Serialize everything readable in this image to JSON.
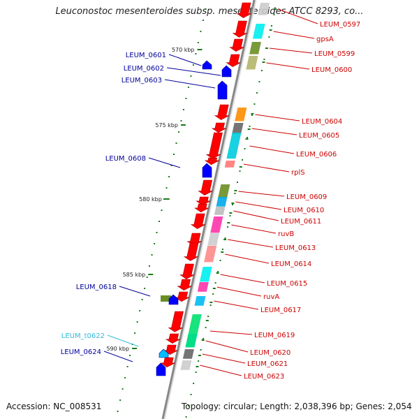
{
  "header": {
    "title": "Leuconostoc mesenteroides subsp. mesenteroides ATCC 8293, co..."
  },
  "footer": {
    "accession": "Accession: NC_008531",
    "topology": "Topology: circular; Length: 2,038,396 bp; Genes: 2,054"
  },
  "colors": {
    "forward_gene": "#ff0000",
    "reverse_gene": "#0000ff",
    "trna_gene": "#00bfff",
    "forward_label": "#cc0000",
    "reverse_label": "#000099",
    "trna_label": "#33bbdd",
    "backbone": "#888888",
    "tick": "#1a7a1a"
  },
  "scale_marks": [
    {
      "label": "570 kbp"
    },
    {
      "label": "575 kbp"
    },
    {
      "label": "580 kbp"
    },
    {
      "label": "585 kbp"
    },
    {
      "label": "590 kbp"
    }
  ],
  "forward_genes": [
    {
      "name": "LEUM_0597",
      "cog_color": "#cccccc"
    },
    {
      "name": "gpsA",
      "cog_color": "#00eeee"
    },
    {
      "name": "LEUM_0599",
      "cog_color": "#6b8e23"
    },
    {
      "name": "LEUM_0600",
      "cog_color": "#b5b56a"
    },
    {
      "name": "LEUM_0604",
      "cog_color": "#ff8c00"
    },
    {
      "name": "LEUM_0605",
      "cog_color": "#666666"
    },
    {
      "name": "LEUM_0606",
      "cog_color": "#00ccdd"
    },
    {
      "name": "rplS",
      "cog_color": "#ff7777"
    },
    {
      "name": "LEUM_0609",
      "cog_color": "#6b8e23"
    },
    {
      "name": "LEUM_0610",
      "cog_color": "#00a8e8"
    },
    {
      "name": "LEUM_0611",
      "cog_color": "#bbbbbb"
    },
    {
      "name": "ruvB",
      "cog_color": "#ff33aa"
    },
    {
      "name": "LEUM_0613",
      "cog_color": "#cccccc"
    },
    {
      "name": "LEUM_0614",
      "cog_color": "#ff8888"
    },
    {
      "name": "LEUM_0615",
      "cog_color": "#00eeee"
    },
    {
      "name": "ruvA",
      "cog_color": "#ff33aa"
    },
    {
      "name": "LEUM_0617",
      "cog_color": "#00bbee"
    },
    {
      "name": "LEUM_0619",
      "cog_color": "#00e070"
    },
    {
      "name": "LEUM_0620",
      "cog_color": "#00dd88"
    },
    {
      "name": "LEUM_0621",
      "cog_color": "#666666"
    },
    {
      "name": "LEUM_0623",
      "cog_color": "#cccccc"
    }
  ],
  "reverse_genes": [
    {
      "name": "LEUM_0601"
    },
    {
      "name": "LEUM_0602"
    },
    {
      "name": "LEUM_0603"
    },
    {
      "name": "LEUM_0608"
    },
    {
      "name": "LEUM_0618"
    },
    {
      "name": "LEUM_t0622"
    },
    {
      "name": "LEUM_0624"
    }
  ]
}
